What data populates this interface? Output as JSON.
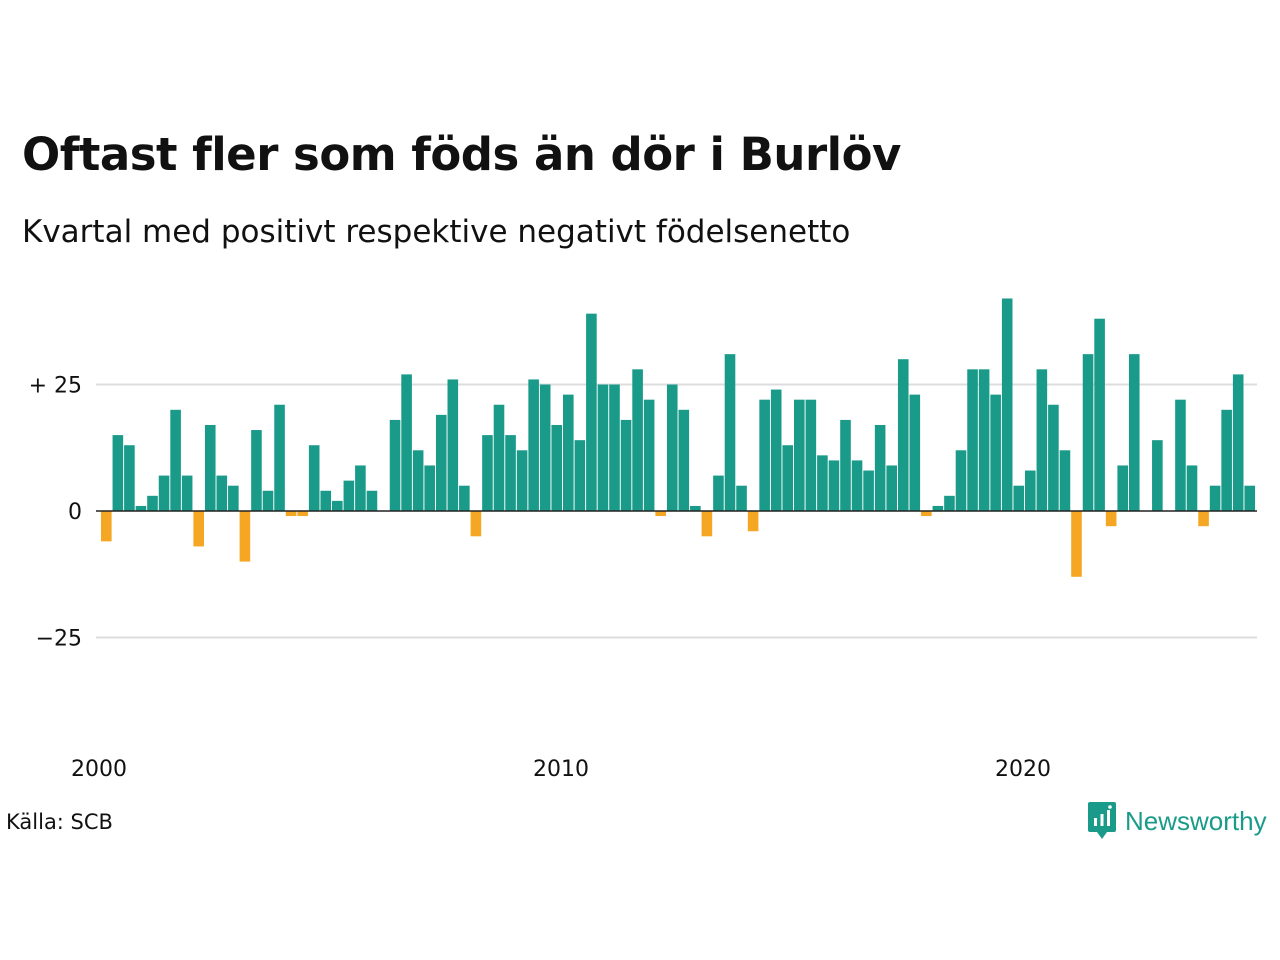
{
  "title": "Oftast fler som föds än dör i Burlöv",
  "subtitle": "Kvartal med positivt respektive negativt födelsenetto",
  "source": "Källa: SCB",
  "brand": {
    "name": "Newsworthy",
    "icon": "newsworthy-logo-icon"
  },
  "colors": {
    "positive": "#1a9b8a",
    "negative": "#f5a623",
    "grid": "#dddddd",
    "baseline": "#222222"
  },
  "chart_data": {
    "type": "bar",
    "title": "Oftast fler som föds än dör i Burlöv",
    "subtitle": "Kvartal med positivt respektive negativt födelsenetto",
    "x_ticks": [
      "2000",
      "2010",
      "2020"
    ],
    "y_ticks": [
      {
        "value": 25,
        "label": "+ 25"
      },
      {
        "value": 0,
        "label": "0"
      },
      {
        "value": -25,
        "label": "−25"
      }
    ],
    "ylim": [
      -45,
      45
    ],
    "grid": true,
    "start": "2000 Q1",
    "values": [
      -6,
      15,
      13,
      1,
      3,
      7,
      20,
      7,
      -7,
      17,
      7,
      5,
      -10,
      16,
      4,
      21,
      -1,
      -1,
      13,
      4,
      2,
      6,
      9,
      4,
      0,
      18,
      27,
      12,
      9,
      19,
      26,
      5,
      -5,
      15,
      21,
      15,
      12,
      26,
      25,
      17,
      23,
      14,
      39,
      25,
      25,
      18,
      28,
      22,
      -1,
      25,
      20,
      1,
      -5,
      7,
      31,
      5,
      -4,
      22,
      24,
      13,
      22,
      22,
      11,
      10,
      18,
      10,
      8,
      17,
      9,
      30,
      23,
      -1,
      1,
      3,
      12,
      28,
      28,
      23,
      42,
      5,
      8,
      28,
      21,
      12,
      -13,
      31,
      38,
      -3,
      9,
      31,
      0,
      14,
      0,
      22,
      9,
      -3,
      5,
      20,
      27,
      5
    ]
  }
}
